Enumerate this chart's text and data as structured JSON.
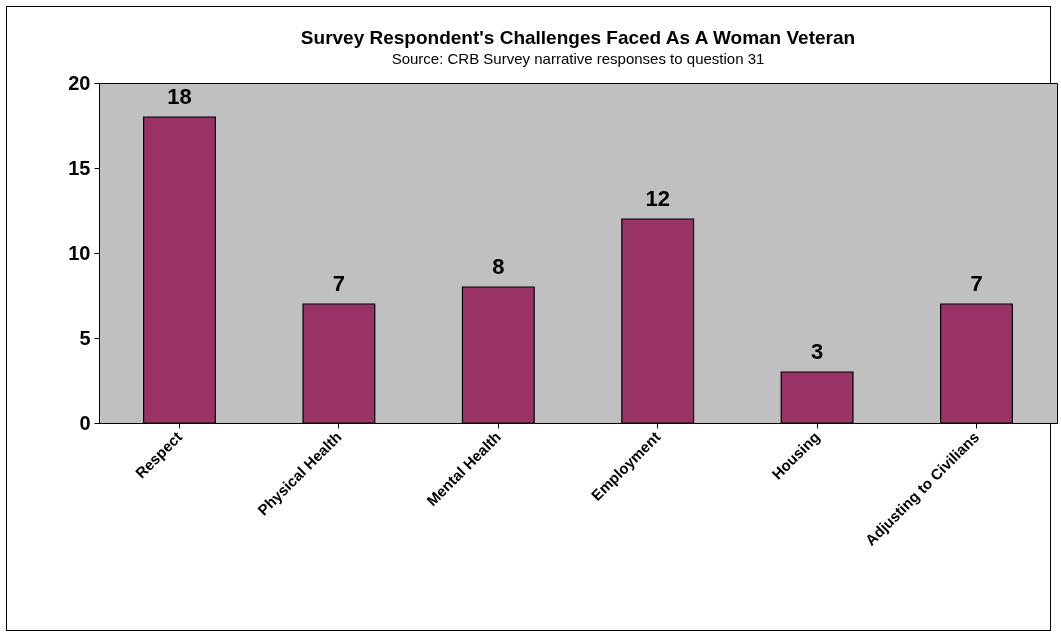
{
  "chart_data": {
    "type": "bar",
    "title": "Survey Respondent's Challenges Faced As A Woman Veteran",
    "subtitle": "Source: CRB Survey narrative responses to question 31",
    "categories": [
      "Respect",
      "Physical Health",
      "Mental Health",
      "Employment",
      "Housing",
      "Adjusting to Civilians"
    ],
    "values": [
      18,
      7,
      8,
      12,
      3,
      7
    ],
    "color": "#993366",
    "ylim": [
      0,
      20
    ],
    "yticks": [
      0,
      5,
      10,
      15,
      20
    ],
    "grid": false,
    "data_labels": true
  }
}
